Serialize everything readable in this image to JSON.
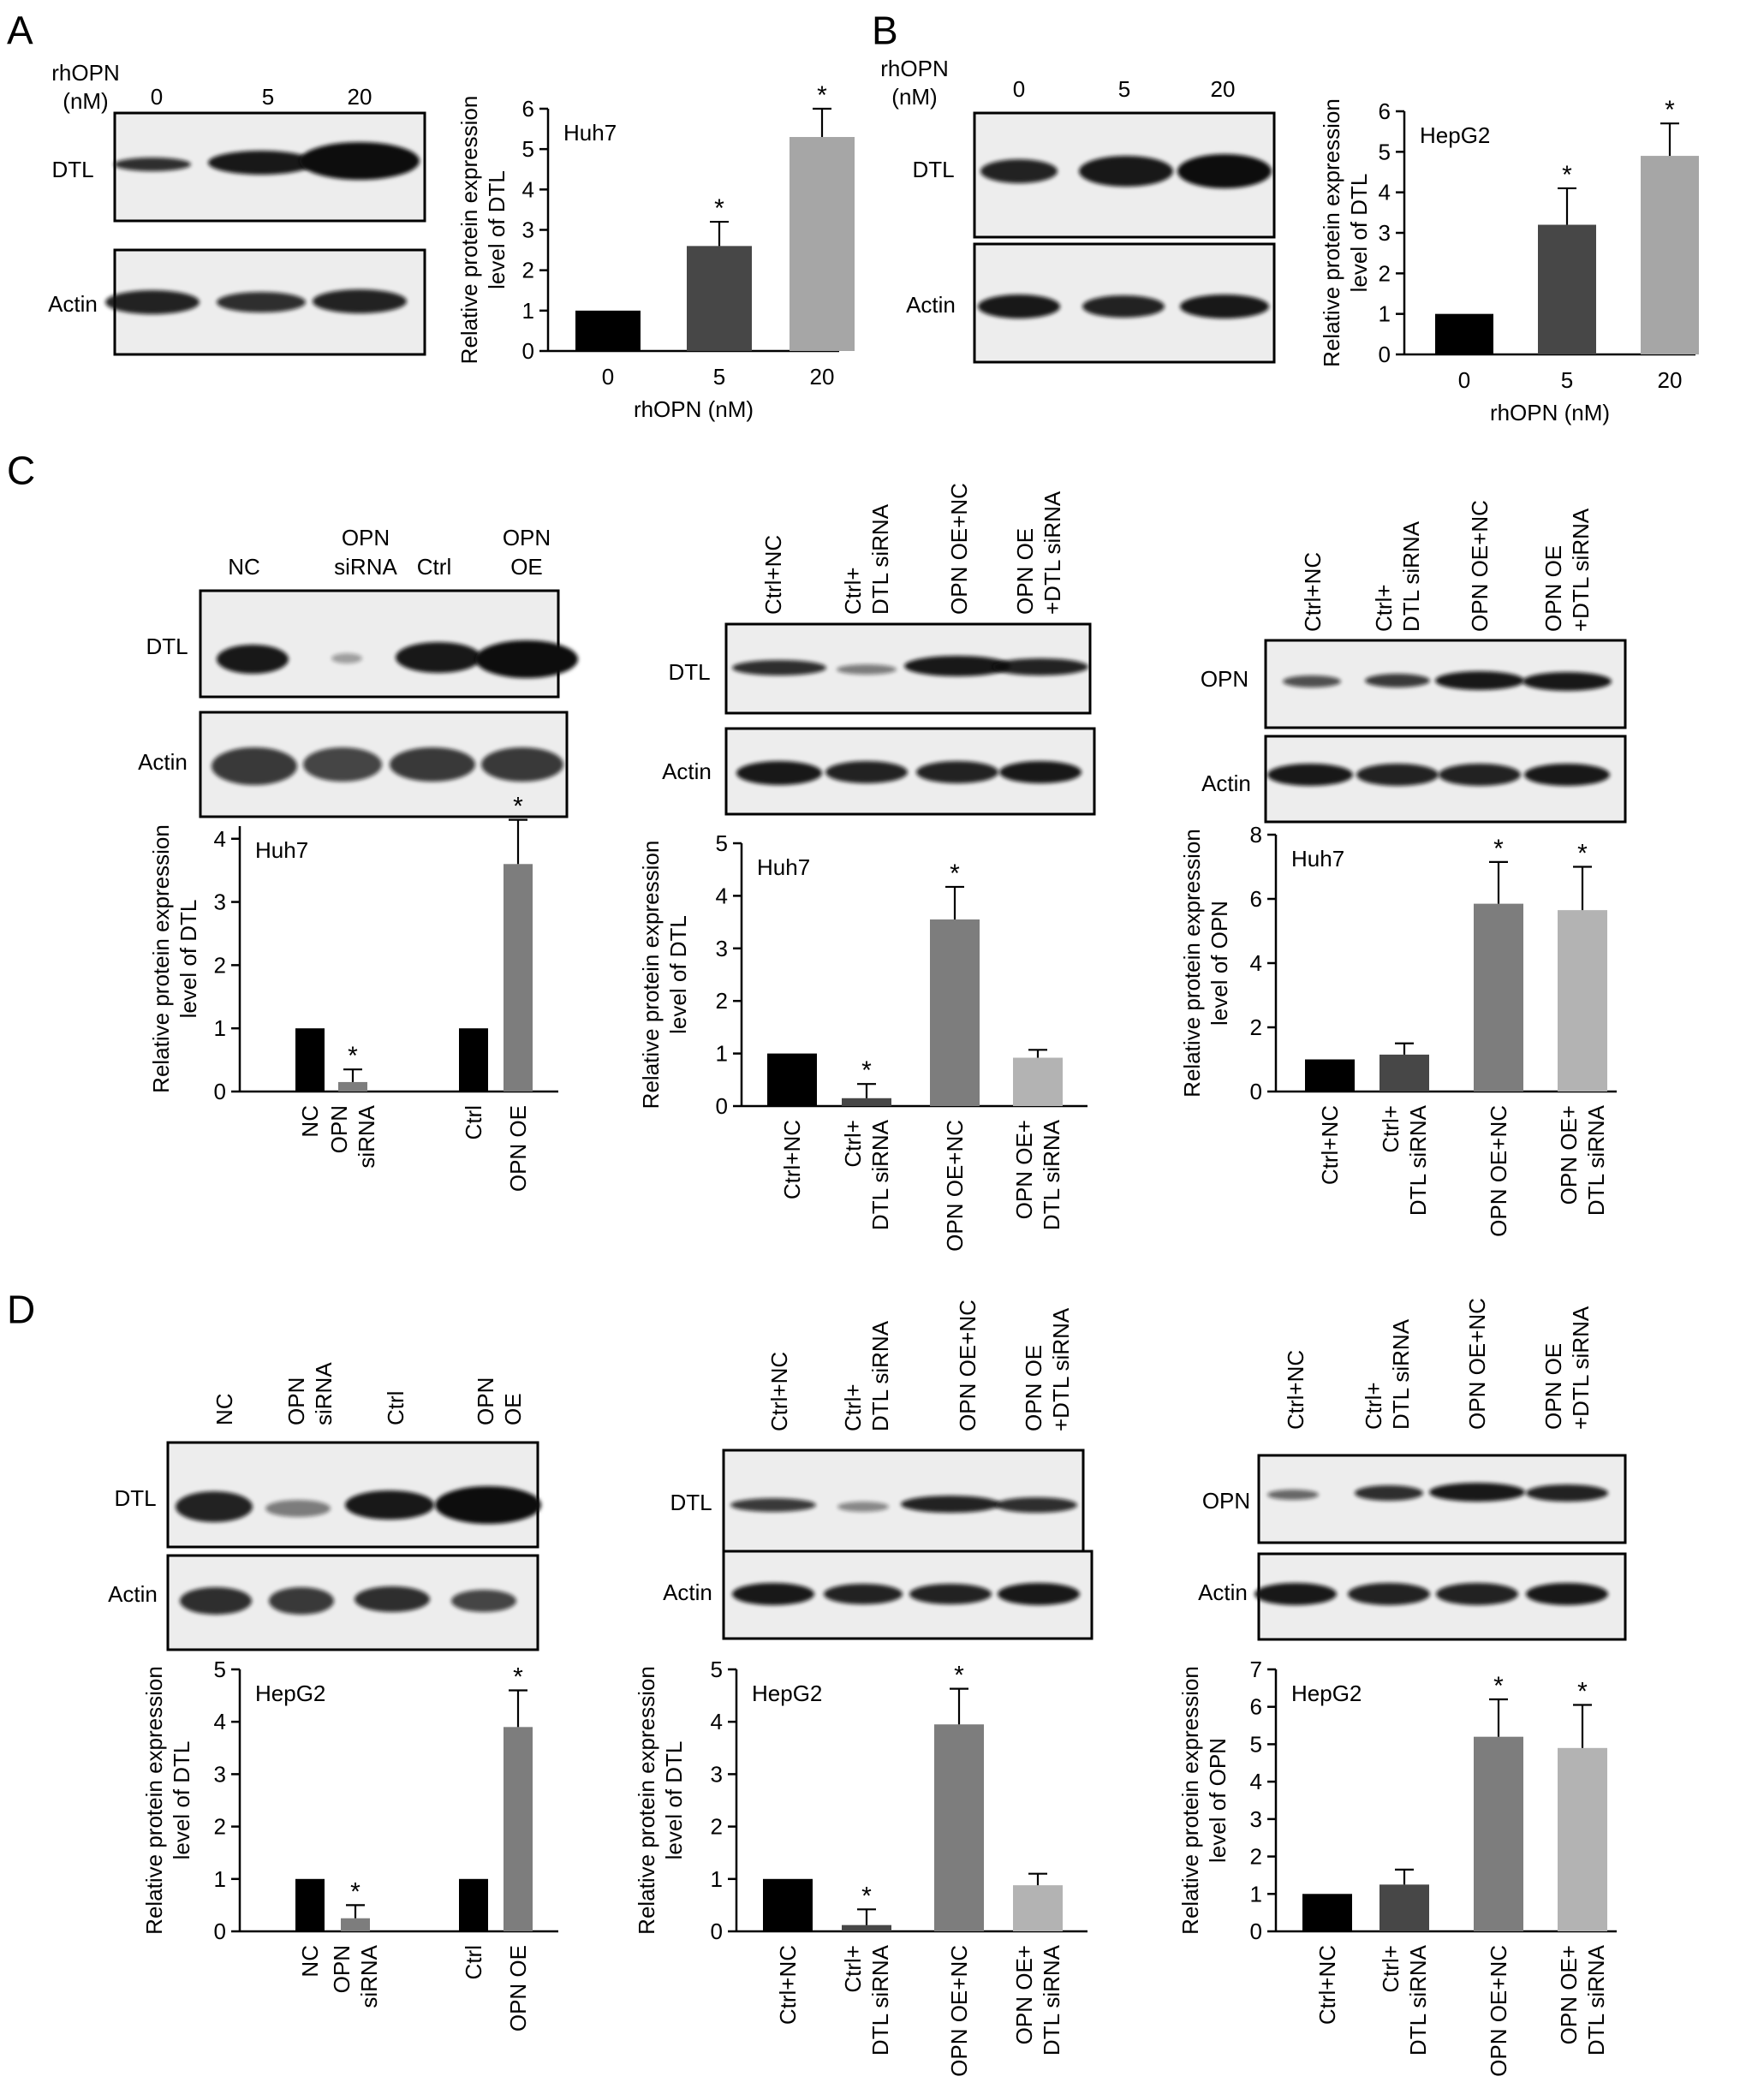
{
  "panels": [
    {
      "letter": "A"
    },
    {
      "letter": "B"
    },
    {
      "letter": "C"
    },
    {
      "letter": "D"
    }
  ],
  "blot_labels": {
    "rhopn_line1": "rhOPN",
    "rhopn_line2": "(nM)",
    "dtl": "DTL",
    "actin": "Actin",
    "opn": "OPN"
  },
  "lane_labels": {
    "dose": [
      "0",
      "5",
      "20"
    ],
    "knock": [
      [
        "NC"
      ],
      [
        "OPN",
        "siRNA"
      ],
      [
        "Ctrl"
      ],
      [
        "OPN",
        "OE"
      ]
    ],
    "rescue": [
      [
        "Ctrl+NC"
      ],
      [
        "Ctrl+",
        "DTL siRNA"
      ],
      [
        "OPN OE+NC"
      ],
      [
        "OPN OE",
        "+DTL siRNA"
      ]
    ]
  },
  "colors": {
    "black": "#000000",
    "dark_gray": "#474747",
    "mid_gray": "#7d7d7d",
    "light_gray": "#a6a6a6",
    "lighter_gray": "#b3b3b3"
  },
  "chart_data": [
    {
      "type": "bar",
      "panel": "A",
      "title": "Huh7",
      "ylabel": "Relative protein expression level of DTL",
      "xlabel": "rhOPN (nM)",
      "categories": [
        "0",
        "5",
        "20"
      ],
      "values": [
        1.0,
        2.6,
        5.3
      ],
      "errors": [
        0,
        0.6,
        0.7
      ],
      "significant": [
        false,
        true,
        true
      ],
      "ylim": [
        0,
        6
      ],
      "yticks": [
        "0",
        "1",
        "2",
        "3",
        "4",
        "5",
        "6"
      ],
      "colors": [
        "#000000",
        "#474747",
        "#a6a6a6"
      ]
    },
    {
      "type": "bar",
      "panel": "B",
      "title": "HepG2",
      "ylabel": "Relative protein expression level of DTL",
      "xlabel": "rhOPN (nM)",
      "categories": [
        "0",
        "5",
        "20"
      ],
      "values": [
        1.0,
        3.2,
        4.9
      ],
      "errors": [
        0,
        0.9,
        0.8
      ],
      "significant": [
        false,
        true,
        true
      ],
      "ylim": [
        0,
        6
      ],
      "yticks": [
        "0",
        "1",
        "2",
        "3",
        "4",
        "5",
        "6"
      ],
      "colors": [
        "#000000",
        "#474747",
        "#a6a6a6"
      ]
    },
    {
      "type": "bar",
      "panel": "C",
      "title": "Huh7",
      "ylabel": "Relative protein expression level of DTL",
      "xlabel": "",
      "categories": [
        [
          "NC"
        ],
        [
          "OPN",
          "siRNA"
        ],
        [
          "Ctrl"
        ],
        [
          "OPN OE"
        ]
      ],
      "values": [
        1.0,
        0.15,
        1.0,
        3.6
      ],
      "errors": [
        0,
        0.2,
        0,
        0.7
      ],
      "significant": [
        false,
        true,
        false,
        true
      ],
      "ylim": [
        0,
        4.2
      ],
      "yticks": [
        "0",
        "1",
        "2",
        "3",
        "4"
      ],
      "colors": [
        "#000000",
        "#7d7d7d",
        "#000000",
        "#7d7d7d"
      ]
    },
    {
      "type": "bar",
      "panel": "C",
      "title": "Huh7",
      "ylabel": "Relative protein expression level of DTL",
      "xlabel": "",
      "categories": [
        [
          "Ctrl+NC"
        ],
        [
          "Ctrl+",
          "DTL siRNA"
        ],
        [
          "OPN OE+NC"
        ],
        [
          "OPN OE+",
          "DTL siRNA"
        ]
      ],
      "values": [
        1.0,
        0.15,
        3.55,
        0.92
      ],
      "errors": [
        0,
        0.27,
        0.62,
        0.15
      ],
      "significant": [
        false,
        true,
        true,
        false
      ],
      "ylim": [
        0,
        5
      ],
      "yticks": [
        "0",
        "1",
        "2",
        "3",
        "4",
        "5"
      ],
      "colors": [
        "#000000",
        "#474747",
        "#7d7d7d",
        "#b3b3b3"
      ]
    },
    {
      "type": "bar",
      "panel": "C",
      "title": "Huh7",
      "ylabel": "Relative protein expression level of OPN",
      "xlabel": "",
      "categories": [
        [
          "Ctrl+NC"
        ],
        [
          "Ctrl+",
          "DTL siRNA"
        ],
        [
          "OPN OE+NC"
        ],
        [
          "OPN OE+",
          "DTL siRNA"
        ]
      ],
      "values": [
        1.0,
        1.15,
        5.85,
        5.65
      ],
      "errors": [
        0,
        0.35,
        1.3,
        1.35
      ],
      "significant": [
        false,
        false,
        true,
        true
      ],
      "ylim": [
        0,
        8
      ],
      "yticks": [
        "0",
        "2",
        "4",
        "6",
        "8"
      ],
      "colors": [
        "#000000",
        "#474747",
        "#7d7d7d",
        "#b3b3b3"
      ]
    },
    {
      "type": "bar",
      "panel": "D",
      "title": "HepG2",
      "ylabel": "Relative protein expression level of DTL",
      "xlabel": "",
      "categories": [
        [
          "NC"
        ],
        [
          "OPN",
          "siRNA"
        ],
        [
          "Ctrl"
        ],
        [
          "OPN OE"
        ]
      ],
      "values": [
        1.0,
        0.25,
        1.0,
        3.9
      ],
      "errors": [
        0,
        0.25,
        0,
        0.7
      ],
      "significant": [
        false,
        true,
        false,
        true
      ],
      "ylim": [
        0,
        5
      ],
      "yticks": [
        "0",
        "1",
        "2",
        "3",
        "4",
        "5"
      ],
      "colors": [
        "#000000",
        "#7d7d7d",
        "#000000",
        "#7d7d7d"
      ]
    },
    {
      "type": "bar",
      "panel": "D",
      "title": "HepG2",
      "ylabel": "Relative protein expression level of DTL",
      "xlabel": "",
      "categories": [
        [
          "Ctrl+NC"
        ],
        [
          "Ctrl+",
          "DTL siRNA"
        ],
        [
          "OPN OE+NC"
        ],
        [
          "OPN OE+",
          "DTL siRNA"
        ]
      ],
      "values": [
        1.0,
        0.12,
        3.95,
        0.88
      ],
      "errors": [
        0,
        0.3,
        0.68,
        0.22
      ],
      "significant": [
        false,
        true,
        true,
        false
      ],
      "ylim": [
        0,
        5
      ],
      "yticks": [
        "0",
        "1",
        "2",
        "3",
        "4",
        "5"
      ],
      "colors": [
        "#000000",
        "#474747",
        "#7d7d7d",
        "#b3b3b3"
      ]
    },
    {
      "type": "bar",
      "panel": "D",
      "title": "HepG2",
      "ylabel": "Relative protein expression level of OPN",
      "xlabel": "",
      "categories": [
        [
          "Ctrl+NC"
        ],
        [
          "Ctrl+",
          "DTL siRNA"
        ],
        [
          "OPN OE+NC"
        ],
        [
          "OPN OE+",
          "DTL siRNA"
        ]
      ],
      "values": [
        1.0,
        1.25,
        5.2,
        4.9
      ],
      "errors": [
        0,
        0.4,
        1.0,
        1.15
      ],
      "significant": [
        false,
        false,
        true,
        true
      ],
      "ylim": [
        0,
        7
      ],
      "yticks": [
        "0",
        "1",
        "2",
        "3",
        "4",
        "5",
        "6",
        "7"
      ],
      "colors": [
        "#000000",
        "#474747",
        "#7d7d7d",
        "#b3b3b3"
      ]
    }
  ]
}
